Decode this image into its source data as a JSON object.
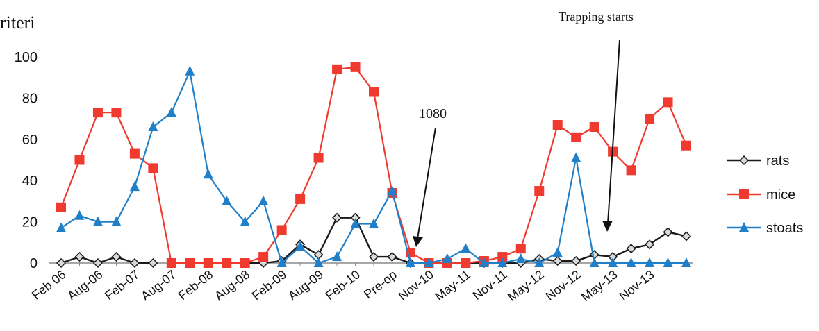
{
  "header": {
    "partial_title": "riteri"
  },
  "annotations": {
    "trapping": "Trapping starts",
    "bait": "1080"
  },
  "colors": {
    "rats": "#1a1a1a",
    "mice": "#f03a2f",
    "stoats": "#1f7fc8",
    "rats_marker_fill": "#d9d9d9",
    "axis": "#8a8a8a"
  },
  "chart_data": {
    "type": "line",
    "title": "",
    "xlabel": "",
    "ylabel": "",
    "ylim": [
      0,
      100
    ],
    "yticks": [
      0,
      20,
      40,
      60,
      80,
      100
    ],
    "grid": false,
    "legend_position": "right",
    "x_tick_labels": [
      "Feb 06",
      "Aug-06",
      "Feb-07",
      "Aug-07",
      "Feb-08",
      "Aug-08",
      "Feb-09",
      "Aug-09",
      "Feb-10",
      "Pre-op",
      "Nov-10",
      "May-11",
      "Nov-11",
      "May-12",
      "Nov-12",
      "May-13",
      "Nov-13"
    ],
    "series": [
      {
        "name": "rats",
        "marker": "diamond",
        "values": [
          0,
          3,
          0,
          3,
          0,
          0,
          null,
          null,
          null,
          null,
          0,
          0,
          1,
          9,
          4,
          22,
          22,
          3,
          3,
          0,
          0,
          0,
          0,
          0,
          0,
          0,
          2,
          1,
          1,
          4,
          3,
          7,
          9,
          15,
          13
        ]
      },
      {
        "name": "mice",
        "marker": "square",
        "values": [
          27,
          50,
          73,
          73,
          53,
          46,
          0,
          0,
          0,
          0,
          0,
          3,
          16,
          31,
          51,
          94,
          95,
          83,
          34,
          5,
          0,
          0,
          0,
          1,
          3,
          7,
          35,
          67,
          61,
          66,
          54,
          45,
          70,
          78,
          57
        ]
      },
      {
        "name": "stoats",
        "marker": "triangle",
        "values": [
          17,
          23,
          20,
          20,
          37,
          66,
          73,
          93,
          43,
          30,
          20,
          30,
          0,
          8,
          0,
          3,
          19,
          19,
          35,
          0,
          0,
          2,
          7,
          0,
          0,
          2,
          0,
          5,
          51,
          0,
          0,
          0,
          0,
          0,
          0
        ]
      }
    ]
  }
}
